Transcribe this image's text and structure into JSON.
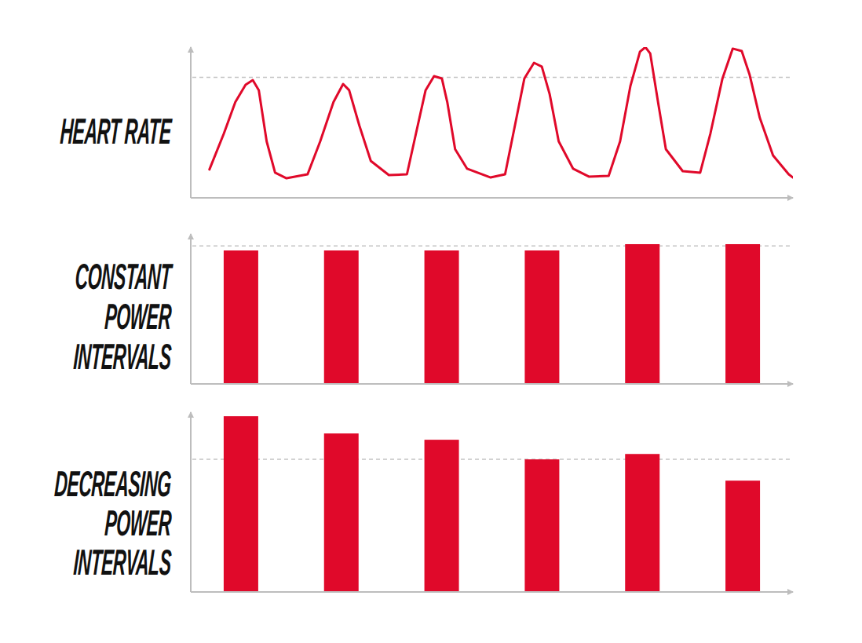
{
  "chart_data": [
    {
      "type": "line",
      "title": "HEART RATE",
      "color": "#e0092a",
      "tick_labels": false,
      "xlim": [
        0,
        100
      ],
      "ylim": [
        0,
        100
      ],
      "threshold": 80,
      "x": [
        3.1,
        5.5,
        7.4,
        9.1,
        10.3,
        11.3,
        12.6,
        14.0,
        15.9,
        19.4,
        21.5,
        23.7,
        25.3,
        26.3,
        28.0,
        29.9,
        32.9,
        35.9,
        37.4,
        39.0,
        40.4,
        41.7,
        42.6,
        43.9,
        45.9,
        49.8,
        52.2,
        53.7,
        55.4,
        57.0,
        58.3,
        59.6,
        61.1,
        63.5,
        66.1,
        69.4,
        71.3,
        73.0,
        74.6,
        75.5,
        76.3,
        77.6,
        78.9,
        81.7,
        84.6,
        86.3,
        88.3,
        90.0,
        91.5,
        92.8,
        94.5,
        96.7,
        99.3,
        100
      ],
      "values": [
        18.8,
        42.7,
        63.5,
        75.0,
        78.1,
        71.4,
        37.5,
        16.7,
        13.0,
        15.6,
        37.5,
        63.5,
        75.5,
        71.4,
        47.9,
        24.5,
        15.1,
        15.6,
        42.7,
        71.4,
        80.7,
        79.2,
        63.5,
        32.3,
        19.3,
        13.5,
        15.6,
        45.3,
        79.2,
        89.6,
        87.0,
        68.8,
        37.5,
        19.3,
        14.1,
        14.6,
        37.5,
        74.0,
        96.9,
        100,
        95.8,
        63.5,
        32.3,
        17.7,
        16.7,
        42.7,
        79.2,
        99.0,
        97.4,
        81.8,
        53.1,
        28.1,
        15.6,
        13.5
      ]
    },
    {
      "type": "bar",
      "title": "CONSTANT\nPOWER\nINTERVALS",
      "color": "#e0092a",
      "tick_labels": false,
      "ylim": [
        0,
        100
      ],
      "threshold": 92,
      "categories": [
        null,
        null,
        null,
        null,
        null,
        null
      ],
      "values": [
        89.0,
        89.0,
        89.0,
        89.0,
        93.2,
        93.2
      ]
    },
    {
      "type": "bar",
      "title": "DECREASING\nPOWER\nINTERVALS",
      "color": "#e0092a",
      "tick_labels": false,
      "ylim": [
        0,
        120
      ],
      "threshold": 88.5,
      "categories": [
        null,
        null,
        null,
        null,
        null,
        null
      ],
      "values": [
        117.3,
        105.8,
        101.6,
        88.5,
        92.1,
        74.3
      ]
    }
  ]
}
